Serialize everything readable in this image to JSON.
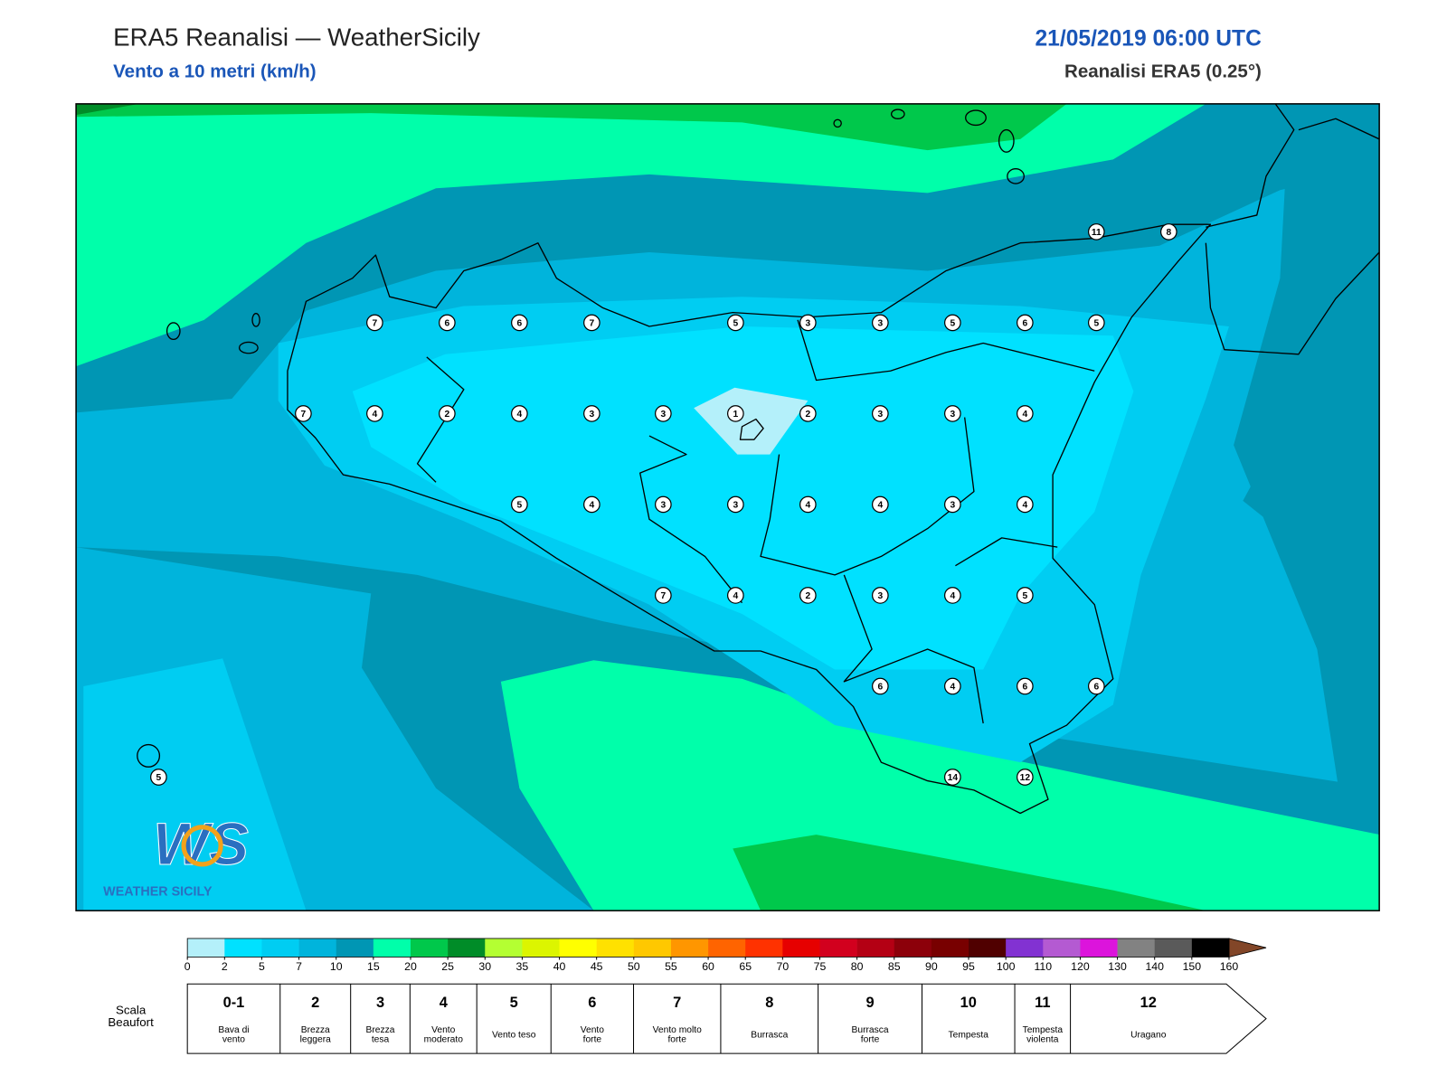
{
  "header": {
    "title": "ERA5 Reanalisi — WeatherSicily",
    "subtitle": "Vento a 10 metri (km/h)",
    "datetime": "21/05/2019 06:00 UTC",
    "source": "Reanalisi ERA5 (0.25°)"
  },
  "stations": [
    11,
    8,
    7,
    6,
    6,
    7,
    5,
    3,
    3,
    5,
    6,
    5,
    7,
    4,
    2,
    4,
    3,
    3,
    1,
    2,
    3,
    3,
    4,
    5,
    4,
    3,
    3,
    4,
    4,
    3,
    4,
    7,
    4,
    2,
    3,
    4,
    5,
    6,
    4,
    6,
    6,
    5,
    14,
    12
  ],
  "logo": {
    "mark": "WS",
    "name": "WEATHER SICILY"
  },
  "colorbar": {
    "ticks": [
      0,
      2,
      5,
      7,
      10,
      15,
      20,
      25,
      30,
      35,
      40,
      45,
      50,
      55,
      60,
      65,
      70,
      75,
      80,
      85,
      90,
      95,
      100,
      110,
      120,
      130,
      140,
      150,
      160
    ],
    "colors": [
      "#b4f0fa",
      "#00e1ff",
      "#00cdf2",
      "#00b4dc",
      "#0096b4",
      "#00ffaa",
      "#00c84b",
      "#008c28",
      "#b4ff32",
      "#dcf500",
      "#ffff00",
      "#ffe100",
      "#ffc800",
      "#ff9600",
      "#ff6400",
      "#ff3200",
      "#e60000",
      "#d2001e",
      "#b40014",
      "#8c000a",
      "#780000",
      "#500000",
      "#8232d2",
      "#b45ad2",
      "#dc14dc",
      "#828282",
      "#5a5a5a",
      "#000000",
      "#824628",
      "#c88246"
    ]
  },
  "beaufort": {
    "label": [
      "Scala",
      "Beaufort"
    ],
    "classes": [
      {
        "force": "0-1",
        "desc": [
          "Bava di",
          "vento"
        ]
      },
      {
        "force": "2",
        "desc": [
          "Brezza",
          "leggera"
        ]
      },
      {
        "force": "3",
        "desc": [
          "Brezza",
          "tesa"
        ]
      },
      {
        "force": "4",
        "desc": [
          "Vento",
          "moderato"
        ]
      },
      {
        "force": "5",
        "desc": [
          "Vento teso"
        ]
      },
      {
        "force": "6",
        "desc": [
          "Vento",
          "forte"
        ]
      },
      {
        "force": "7",
        "desc": [
          "Vento molto",
          "forte"
        ]
      },
      {
        "force": "8",
        "desc": [
          "Burrasca"
        ]
      },
      {
        "force": "9",
        "desc": [
          "Burrasca",
          "forte"
        ]
      },
      {
        "force": "10",
        "desc": [
          "Tempesta"
        ]
      },
      {
        "force": "11",
        "desc": [
          "Tempesta",
          "violenta"
        ]
      },
      {
        "force": "12",
        "desc": [
          "Uragano"
        ]
      }
    ]
  }
}
